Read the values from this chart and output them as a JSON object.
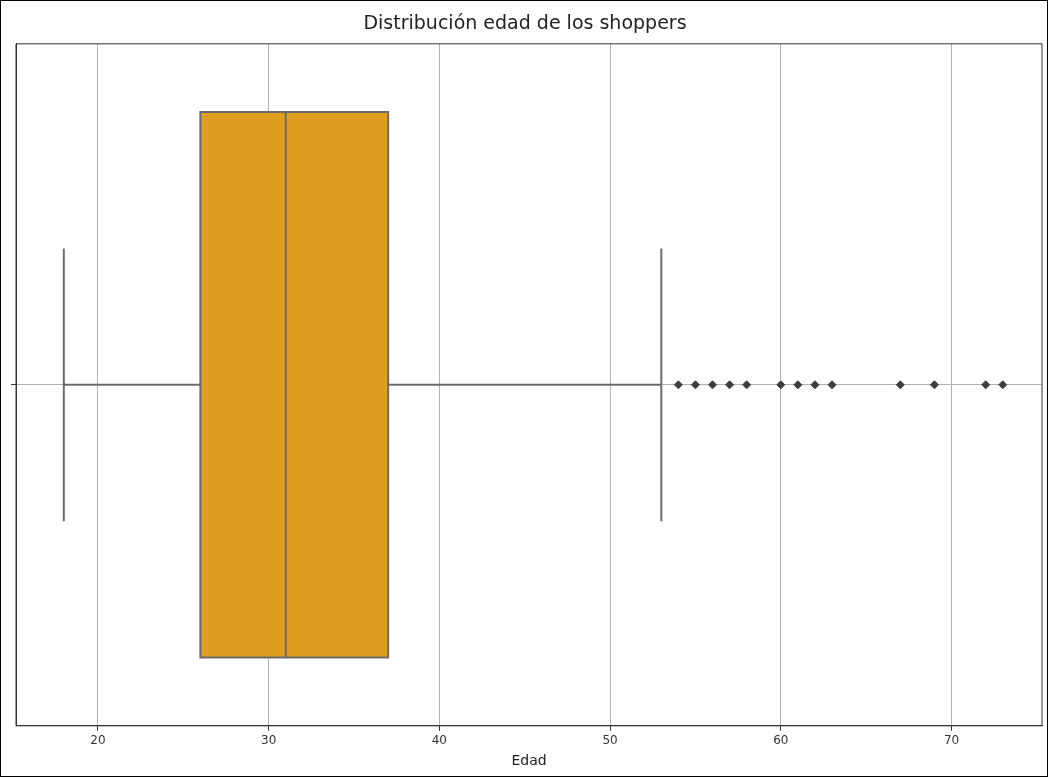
{
  "chart_data": {
    "type": "box",
    "orientation": "horizontal",
    "title": "Distribución edad de los shoppers",
    "xlabel": "Edad",
    "categories": [
      null
    ],
    "boxes": [
      {
        "low": 18,
        "q1": 26,
        "median": 31,
        "q3": 37,
        "high": 53,
        "outliers": [
          54,
          55,
          56,
          57,
          58,
          60,
          61,
          62,
          63,
          67,
          69,
          72,
          73
        ]
      }
    ],
    "color": "#e09e21",
    "marker": "diamond",
    "xlim": [
      15.2,
      75.3
    ],
    "xticks": [
      20,
      30,
      40,
      50,
      60,
      70
    ],
    "grid": true,
    "legend": false
  }
}
